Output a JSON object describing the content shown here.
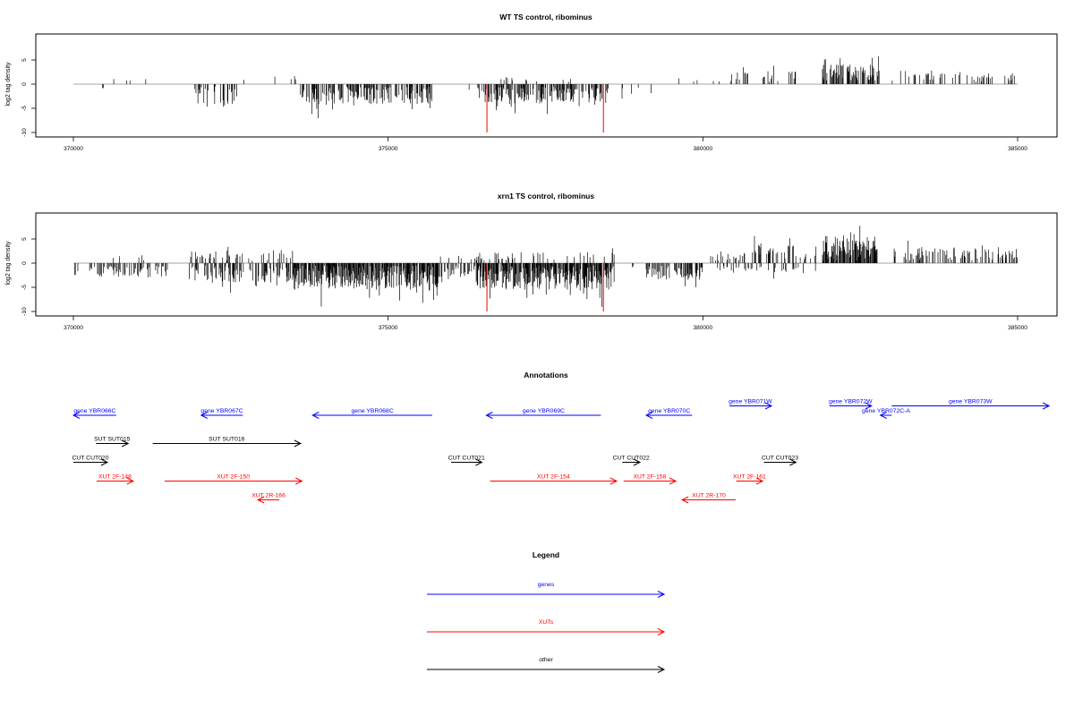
{
  "colors": {
    "gene": "#0000ff",
    "xut": "#ff0000",
    "other": "#000000",
    "highlight": "#ff0000"
  },
  "chart_data": [
    {
      "type": "bar",
      "title": "WT TS control, ribominus",
      "ylabel": "log2 tag density",
      "xlim": [
        370000,
        385000
      ],
      "ylim": [
        -10,
        10
      ],
      "xticks": [
        370000,
        375000,
        380000,
        385000
      ],
      "yticks": [
        -10,
        -5,
        0,
        5
      ],
      "highlight_x": [
        376570,
        378420
      ],
      "highlight_y": -10,
      "baseline": {
        "x": [
          370000,
          385000
        ],
        "y": 0
      },
      "series": [
        {
          "x_start": 370000,
          "x_end": 370500,
          "sign": -1,
          "density": 0.04,
          "amplitude": 1.2
        },
        {
          "x_start": 370500,
          "x_end": 371800,
          "sign": 1,
          "density": 0.02,
          "amplitude": 0.9
        },
        {
          "x_start": 371900,
          "x_end": 372600,
          "sign": -1,
          "density": 0.35,
          "amplitude": 4.2
        },
        {
          "x_start": 372700,
          "x_end": 373600,
          "sign": 1,
          "density": 0.03,
          "amplitude": 1.4
        },
        {
          "x_start": 373600,
          "x_end": 375700,
          "sign": -1,
          "density": 0.5,
          "amplitude": 3.8
        },
        {
          "x_start": 375700,
          "x_end": 376300,
          "sign": -1,
          "density": 0.04,
          "amplitude": 1.2
        },
        {
          "x_start": 376400,
          "x_end": 378500,
          "sign": -1,
          "density": 0.5,
          "amplitude": 3.5
        },
        {
          "x_start": 376700,
          "x_end": 378200,
          "sign": 1,
          "density": 0.05,
          "amplitude": 0.8
        },
        {
          "x_start": 378700,
          "x_end": 379400,
          "sign": -1,
          "density": 0.08,
          "amplitude": 2.2
        },
        {
          "x_start": 379400,
          "x_end": 380300,
          "sign": 1,
          "density": 0.03,
          "amplitude": 0.7
        },
        {
          "x_start": 380400,
          "x_end": 381500,
          "sign": 1,
          "density": 0.12,
          "amplitude": 2.2
        },
        {
          "x_start": 381900,
          "x_end": 382800,
          "sign": 1,
          "density": 0.6,
          "amplitude": 3.6
        },
        {
          "x_start": 383000,
          "x_end": 385000,
          "sign": 1,
          "density": 0.18,
          "amplitude": 1.8
        }
      ]
    },
    {
      "type": "bar",
      "title": "xrn1 TS control, ribominus",
      "ylabel": "log2 tag density",
      "xlim": [
        370000,
        385000
      ],
      "ylim": [
        -10,
        10
      ],
      "xticks": [
        370000,
        375000,
        380000,
        385000
      ],
      "yticks": [
        -10,
        -5,
        0,
        5
      ],
      "highlight_x": [
        376570,
        378420
      ],
      "highlight_y": -10,
      "baseline": {
        "x": [
          370000,
          385000
        ],
        "y": 0
      },
      "series": [
        {
          "x_start": 370000,
          "x_end": 371500,
          "sign": -1,
          "density": 0.28,
          "amplitude": 2.4
        },
        {
          "x_start": 370500,
          "x_end": 371500,
          "sign": 1,
          "density": 0.05,
          "amplitude": 1.4
        },
        {
          "x_start": 371800,
          "x_end": 373500,
          "sign": -1,
          "density": 0.35,
          "amplitude": 3.6
        },
        {
          "x_start": 371800,
          "x_end": 373500,
          "sign": 1,
          "density": 0.15,
          "amplitude": 2.2
        },
        {
          "x_start": 373500,
          "x_end": 375800,
          "sign": -1,
          "density": 0.8,
          "amplitude": 5.0
        },
        {
          "x_start": 375800,
          "x_end": 376500,
          "sign": -1,
          "density": 0.3,
          "amplitude": 2.4
        },
        {
          "x_start": 375800,
          "x_end": 376500,
          "sign": 1,
          "density": 0.05,
          "amplitude": 1.0
        },
        {
          "x_start": 376400,
          "x_end": 378600,
          "sign": -1,
          "density": 0.8,
          "amplitude": 5.0
        },
        {
          "x_start": 376400,
          "x_end": 378600,
          "sign": 1,
          "density": 0.1,
          "amplitude": 1.8
        },
        {
          "x_start": 378700,
          "x_end": 378900,
          "sign": -1,
          "density": 0.1,
          "amplitude": 1.2
        },
        {
          "x_start": 379100,
          "x_end": 380000,
          "sign": -1,
          "density": 0.45,
          "amplitude": 3.0
        },
        {
          "x_start": 380100,
          "x_end": 381800,
          "sign": -1,
          "density": 0.12,
          "amplitude": 1.6
        },
        {
          "x_start": 380100,
          "x_end": 381800,
          "sign": 1,
          "density": 0.25,
          "amplitude": 3.2
        },
        {
          "x_start": 381900,
          "x_end": 382800,
          "sign": 1,
          "density": 0.75,
          "amplitude": 5.2
        },
        {
          "x_start": 383000,
          "x_end": 385000,
          "sign": 1,
          "density": 0.3,
          "amplitude": 2.6
        }
      ]
    }
  ],
  "annotations": {
    "title": "Annotations",
    "xlim": [
      370000,
      385000
    ],
    "features": [
      {
        "label": "gene YBR066C",
        "kind": "gene",
        "start": 370000,
        "end": 370680,
        "dir": "left",
        "row": 0
      },
      {
        "label": "gene YBR067C",
        "kind": "gene",
        "start": 372030,
        "end": 372690,
        "dir": "left",
        "row": 0
      },
      {
        "label": "gene YBR068C",
        "kind": "gene",
        "start": 373800,
        "end": 375700,
        "dir": "left",
        "row": 0
      },
      {
        "label": "gene YBR069C",
        "kind": "gene",
        "start": 376560,
        "end": 378380,
        "dir": "left",
        "row": 0
      },
      {
        "label": "gene YBR070C",
        "kind": "gene",
        "start": 379100,
        "end": 379830,
        "dir": "left",
        "row": 0
      },
      {
        "label": "gene YBR071W",
        "kind": "gene",
        "start": 380420,
        "end": 381090,
        "dir": "right",
        "row": -1
      },
      {
        "label": "gene YBR072W",
        "kind": "gene",
        "start": 382010,
        "end": 382680,
        "dir": "right",
        "row": -1
      },
      {
        "label": "gene YBR072C-A",
        "kind": "gene",
        "start": 382820,
        "end": 383000,
        "dir": "left",
        "row": 0
      },
      {
        "label": "gene YBR073W",
        "kind": "gene",
        "start": 383000,
        "end": 385500,
        "dir": "right",
        "row": -1
      },
      {
        "label": "SUT SUT015",
        "kind": "other",
        "start": 370360,
        "end": 370870,
        "dir": "right",
        "row": 3
      },
      {
        "label": "SUT SUT016",
        "kind": "other",
        "start": 371260,
        "end": 373610,
        "dir": "right",
        "row": 3
      },
      {
        "label": "CUT CUT020",
        "kind": "other",
        "start": 370000,
        "end": 370540,
        "dir": "right",
        "row": 5
      },
      {
        "label": "CUT CUT021",
        "kind": "other",
        "start": 376000,
        "end": 376490,
        "dir": "right",
        "row": 5
      },
      {
        "label": "CUT CUT022",
        "kind": "other",
        "start": 378720,
        "end": 379000,
        "dir": "right",
        "row": 5
      },
      {
        "label": "CUT CUT023",
        "kind": "other",
        "start": 380970,
        "end": 381480,
        "dir": "right",
        "row": 5
      },
      {
        "label": "XUT 2F-148",
        "kind": "xut",
        "start": 370370,
        "end": 370950,
        "dir": "right",
        "row": 7
      },
      {
        "label": "XUT 2F-150",
        "kind": "xut",
        "start": 371450,
        "end": 373630,
        "dir": "right",
        "row": 7
      },
      {
        "label": "XUT 2R-166",
        "kind": "xut",
        "start": 372930,
        "end": 373270,
        "dir": "left",
        "row": 9
      },
      {
        "label": "XUT 2F-154",
        "kind": "xut",
        "start": 376620,
        "end": 378630,
        "dir": "right",
        "row": 7
      },
      {
        "label": "XUT 2F-158",
        "kind": "xut",
        "start": 378740,
        "end": 379570,
        "dir": "right",
        "row": 7
      },
      {
        "label": "XUT 2R-170",
        "kind": "xut",
        "start": 379670,
        "end": 380520,
        "dir": "left",
        "row": 9
      },
      {
        "label": "XUT 2F-161",
        "kind": "xut",
        "start": 380530,
        "end": 380950,
        "dir": "right",
        "row": 7
      }
    ]
  },
  "legend": {
    "title": "Legend",
    "items": [
      {
        "label": "genes",
        "kind": "gene"
      },
      {
        "label": "XUTs",
        "kind": "xut"
      },
      {
        "label": "other",
        "kind": "other"
      }
    ]
  }
}
